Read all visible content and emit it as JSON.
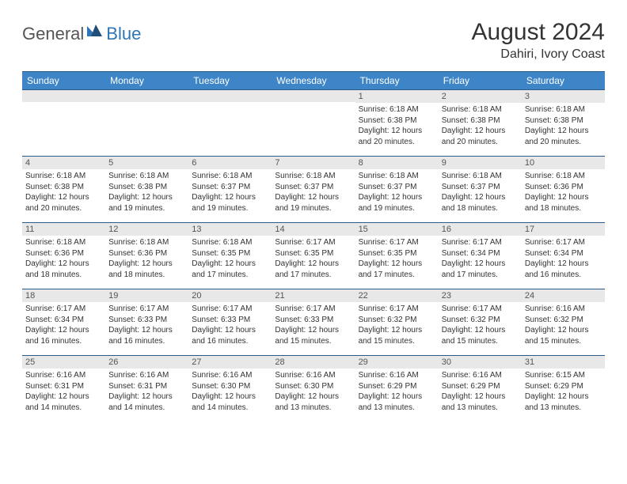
{
  "brand": {
    "part1": "General",
    "part2": "Blue"
  },
  "title": "August 2024",
  "location": "Dahiri, Ivory Coast",
  "colors": {
    "header_bg": "#3d85c6",
    "header_border": "#2e5a8a",
    "daynum_bg": "#e8e8e8",
    "text": "#333333",
    "brand_blue": "#2e75b6"
  },
  "weekdays": [
    "Sunday",
    "Monday",
    "Tuesday",
    "Wednesday",
    "Thursday",
    "Friday",
    "Saturday"
  ],
  "weeks": [
    [
      {
        "n": "",
        "sr": "",
        "ss": "",
        "dl": ""
      },
      {
        "n": "",
        "sr": "",
        "ss": "",
        "dl": ""
      },
      {
        "n": "",
        "sr": "",
        "ss": "",
        "dl": ""
      },
      {
        "n": "",
        "sr": "",
        "ss": "",
        "dl": ""
      },
      {
        "n": "1",
        "sr": "Sunrise: 6:18 AM",
        "ss": "Sunset: 6:38 PM",
        "dl": "Daylight: 12 hours and 20 minutes."
      },
      {
        "n": "2",
        "sr": "Sunrise: 6:18 AM",
        "ss": "Sunset: 6:38 PM",
        "dl": "Daylight: 12 hours and 20 minutes."
      },
      {
        "n": "3",
        "sr": "Sunrise: 6:18 AM",
        "ss": "Sunset: 6:38 PM",
        "dl": "Daylight: 12 hours and 20 minutes."
      }
    ],
    [
      {
        "n": "4",
        "sr": "Sunrise: 6:18 AM",
        "ss": "Sunset: 6:38 PM",
        "dl": "Daylight: 12 hours and 20 minutes."
      },
      {
        "n": "5",
        "sr": "Sunrise: 6:18 AM",
        "ss": "Sunset: 6:38 PM",
        "dl": "Daylight: 12 hours and 19 minutes."
      },
      {
        "n": "6",
        "sr": "Sunrise: 6:18 AM",
        "ss": "Sunset: 6:37 PM",
        "dl": "Daylight: 12 hours and 19 minutes."
      },
      {
        "n": "7",
        "sr": "Sunrise: 6:18 AM",
        "ss": "Sunset: 6:37 PM",
        "dl": "Daylight: 12 hours and 19 minutes."
      },
      {
        "n": "8",
        "sr": "Sunrise: 6:18 AM",
        "ss": "Sunset: 6:37 PM",
        "dl": "Daylight: 12 hours and 19 minutes."
      },
      {
        "n": "9",
        "sr": "Sunrise: 6:18 AM",
        "ss": "Sunset: 6:37 PM",
        "dl": "Daylight: 12 hours and 18 minutes."
      },
      {
        "n": "10",
        "sr": "Sunrise: 6:18 AM",
        "ss": "Sunset: 6:36 PM",
        "dl": "Daylight: 12 hours and 18 minutes."
      }
    ],
    [
      {
        "n": "11",
        "sr": "Sunrise: 6:18 AM",
        "ss": "Sunset: 6:36 PM",
        "dl": "Daylight: 12 hours and 18 minutes."
      },
      {
        "n": "12",
        "sr": "Sunrise: 6:18 AM",
        "ss": "Sunset: 6:36 PM",
        "dl": "Daylight: 12 hours and 18 minutes."
      },
      {
        "n": "13",
        "sr": "Sunrise: 6:18 AM",
        "ss": "Sunset: 6:35 PM",
        "dl": "Daylight: 12 hours and 17 minutes."
      },
      {
        "n": "14",
        "sr": "Sunrise: 6:17 AM",
        "ss": "Sunset: 6:35 PM",
        "dl": "Daylight: 12 hours and 17 minutes."
      },
      {
        "n": "15",
        "sr": "Sunrise: 6:17 AM",
        "ss": "Sunset: 6:35 PM",
        "dl": "Daylight: 12 hours and 17 minutes."
      },
      {
        "n": "16",
        "sr": "Sunrise: 6:17 AM",
        "ss": "Sunset: 6:34 PM",
        "dl": "Daylight: 12 hours and 17 minutes."
      },
      {
        "n": "17",
        "sr": "Sunrise: 6:17 AM",
        "ss": "Sunset: 6:34 PM",
        "dl": "Daylight: 12 hours and 16 minutes."
      }
    ],
    [
      {
        "n": "18",
        "sr": "Sunrise: 6:17 AM",
        "ss": "Sunset: 6:34 PM",
        "dl": "Daylight: 12 hours and 16 minutes."
      },
      {
        "n": "19",
        "sr": "Sunrise: 6:17 AM",
        "ss": "Sunset: 6:33 PM",
        "dl": "Daylight: 12 hours and 16 minutes."
      },
      {
        "n": "20",
        "sr": "Sunrise: 6:17 AM",
        "ss": "Sunset: 6:33 PM",
        "dl": "Daylight: 12 hours and 16 minutes."
      },
      {
        "n": "21",
        "sr": "Sunrise: 6:17 AM",
        "ss": "Sunset: 6:33 PM",
        "dl": "Daylight: 12 hours and 15 minutes."
      },
      {
        "n": "22",
        "sr": "Sunrise: 6:17 AM",
        "ss": "Sunset: 6:32 PM",
        "dl": "Daylight: 12 hours and 15 minutes."
      },
      {
        "n": "23",
        "sr": "Sunrise: 6:17 AM",
        "ss": "Sunset: 6:32 PM",
        "dl": "Daylight: 12 hours and 15 minutes."
      },
      {
        "n": "24",
        "sr": "Sunrise: 6:16 AM",
        "ss": "Sunset: 6:32 PM",
        "dl": "Daylight: 12 hours and 15 minutes."
      }
    ],
    [
      {
        "n": "25",
        "sr": "Sunrise: 6:16 AM",
        "ss": "Sunset: 6:31 PM",
        "dl": "Daylight: 12 hours and 14 minutes."
      },
      {
        "n": "26",
        "sr": "Sunrise: 6:16 AM",
        "ss": "Sunset: 6:31 PM",
        "dl": "Daylight: 12 hours and 14 minutes."
      },
      {
        "n": "27",
        "sr": "Sunrise: 6:16 AM",
        "ss": "Sunset: 6:30 PM",
        "dl": "Daylight: 12 hours and 14 minutes."
      },
      {
        "n": "28",
        "sr": "Sunrise: 6:16 AM",
        "ss": "Sunset: 6:30 PM",
        "dl": "Daylight: 12 hours and 13 minutes."
      },
      {
        "n": "29",
        "sr": "Sunrise: 6:16 AM",
        "ss": "Sunset: 6:29 PM",
        "dl": "Daylight: 12 hours and 13 minutes."
      },
      {
        "n": "30",
        "sr": "Sunrise: 6:16 AM",
        "ss": "Sunset: 6:29 PM",
        "dl": "Daylight: 12 hours and 13 minutes."
      },
      {
        "n": "31",
        "sr": "Sunrise: 6:15 AM",
        "ss": "Sunset: 6:29 PM",
        "dl": "Daylight: 12 hours and 13 minutes."
      }
    ]
  ]
}
